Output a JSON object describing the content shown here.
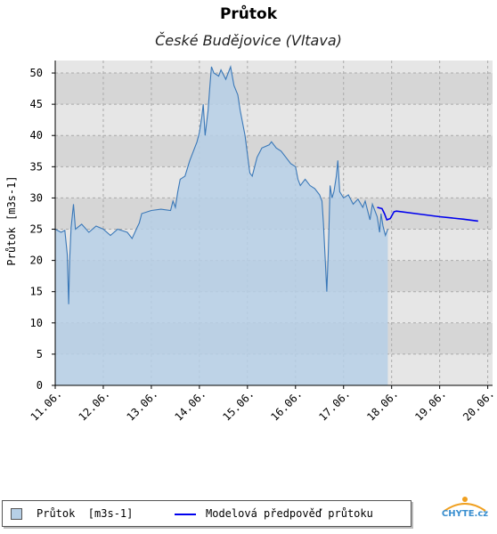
{
  "chart_data": {
    "type": "area",
    "title": "Průtok",
    "subtitle": "České Budějovice (Vltava)",
    "ylabel": "Průtok [m3s-1]",
    "xlabel": "",
    "ylim": [
      0,
      52
    ],
    "xlim": [
      0,
      9.1
    ],
    "yticks": [
      0,
      5,
      10,
      15,
      20,
      25,
      30,
      35,
      40,
      45,
      50
    ],
    "xticks": [
      "11.06.",
      "12.06.",
      "13.06.",
      "14.06.",
      "15.06.",
      "16.06.",
      "17.06.",
      "18.06.",
      "19.06.",
      "20.06."
    ],
    "grid": true,
    "legend_position": "bottom",
    "series": [
      {
        "name": "Průtok  [m3s-1]",
        "kind": "area",
        "color": "#3a78b8",
        "fill": "#b6cfe6",
        "points": [
          [
            0.0,
            25.0
          ],
          [
            0.12,
            24.5
          ],
          [
            0.2,
            24.8
          ],
          [
            0.25,
            21.0
          ],
          [
            0.28,
            13.0
          ],
          [
            0.3,
            20.0
          ],
          [
            0.33,
            25.2
          ],
          [
            0.38,
            29.0
          ],
          [
            0.42,
            25.0
          ],
          [
            0.55,
            25.8
          ],
          [
            0.7,
            24.5
          ],
          [
            0.85,
            25.5
          ],
          [
            1.0,
            25.0
          ],
          [
            1.15,
            24.0
          ],
          [
            1.3,
            25.0
          ],
          [
            1.5,
            24.5
          ],
          [
            1.6,
            23.5
          ],
          [
            1.7,
            25.2
          ],
          [
            1.75,
            26.0
          ],
          [
            1.8,
            27.5
          ],
          [
            2.0,
            28.0
          ],
          [
            2.2,
            28.2
          ],
          [
            2.4,
            28.0
          ],
          [
            2.45,
            29.5
          ],
          [
            2.5,
            28.5
          ],
          [
            2.55,
            31.0
          ],
          [
            2.6,
            33.0
          ],
          [
            2.7,
            33.5
          ],
          [
            2.8,
            36.0
          ],
          [
            2.85,
            37.0
          ],
          [
            2.9,
            38.0
          ],
          [
            2.95,
            39.0
          ],
          [
            3.0,
            40.5
          ],
          [
            3.05,
            43.0
          ],
          [
            3.08,
            45.0
          ],
          [
            3.12,
            40.0
          ],
          [
            3.18,
            44.0
          ],
          [
            3.22,
            48.0
          ],
          [
            3.25,
            51.0
          ],
          [
            3.3,
            50.0
          ],
          [
            3.4,
            49.5
          ],
          [
            3.45,
            50.5
          ],
          [
            3.55,
            49.0
          ],
          [
            3.6,
            50.0
          ],
          [
            3.65,
            51.0
          ],
          [
            3.72,
            48.0
          ],
          [
            3.8,
            46.5
          ],
          [
            3.85,
            44.0
          ],
          [
            3.9,
            42.0
          ],
          [
            3.95,
            40.0
          ],
          [
            4.0,
            37.0
          ],
          [
            4.05,
            34.0
          ],
          [
            4.1,
            33.5
          ],
          [
            4.2,
            36.5
          ],
          [
            4.3,
            38.0
          ],
          [
            4.45,
            38.5
          ],
          [
            4.5,
            39.0
          ],
          [
            4.6,
            38.0
          ],
          [
            4.7,
            37.5
          ],
          [
            4.8,
            36.5
          ],
          [
            4.9,
            35.5
          ],
          [
            5.0,
            35.0
          ],
          [
            5.05,
            33.0
          ],
          [
            5.1,
            32.0
          ],
          [
            5.2,
            33.0
          ],
          [
            5.3,
            32.0
          ],
          [
            5.4,
            31.5
          ],
          [
            5.5,
            30.5
          ],
          [
            5.55,
            29.5
          ],
          [
            5.58,
            26.0
          ],
          [
            5.62,
            20.0
          ],
          [
            5.65,
            15.0
          ],
          [
            5.68,
            21.0
          ],
          [
            5.7,
            26.0
          ],
          [
            5.72,
            32.0
          ],
          [
            5.76,
            30.0
          ],
          [
            5.8,
            31.0
          ],
          [
            5.85,
            33.5
          ],
          [
            5.88,
            36.0
          ],
          [
            5.92,
            31.0
          ],
          [
            6.0,
            30.0
          ],
          [
            6.1,
            30.5
          ],
          [
            6.2,
            29.0
          ],
          [
            6.3,
            29.8
          ],
          [
            6.4,
            28.5
          ],
          [
            6.45,
            29.5
          ],
          [
            6.5,
            28.0
          ],
          [
            6.55,
            26.5
          ],
          [
            6.6,
            29.0
          ],
          [
            6.7,
            27.0
          ],
          [
            6.75,
            24.5
          ],
          [
            6.78,
            27.5
          ],
          [
            6.82,
            25.5
          ],
          [
            6.87,
            24.0
          ],
          [
            6.92,
            25.0
          ]
        ]
      },
      {
        "name": "Modelová předpověď průtoku",
        "kind": "line",
        "color": "#0000ee",
        "points": [
          [
            6.7,
            28.5
          ],
          [
            6.8,
            28.3
          ],
          [
            6.85,
            27.5
          ],
          [
            6.9,
            26.5
          ],
          [
            6.97,
            26.7
          ],
          [
            7.05,
            27.8
          ],
          [
            7.1,
            27.9
          ],
          [
            7.5,
            27.5
          ],
          [
            8.0,
            27.0
          ],
          [
            8.5,
            26.6
          ],
          [
            8.8,
            26.3
          ]
        ]
      }
    ]
  },
  "logo_text": "CHYTE.cz"
}
